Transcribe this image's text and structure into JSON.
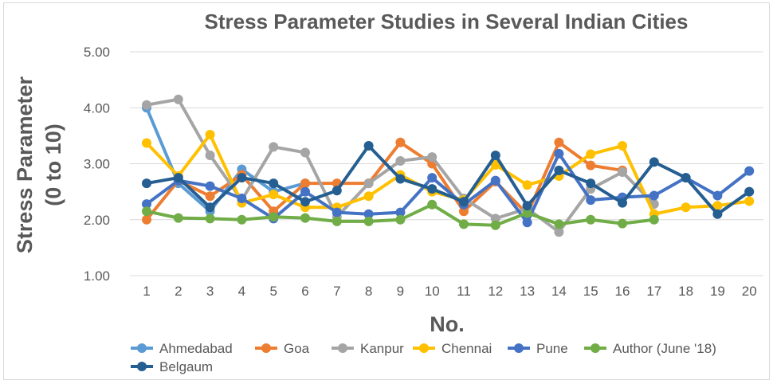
{
  "chart_data": {
    "type": "line",
    "title": "Stress Parameter Studies in Several Indian Cities",
    "xlabel": "No.",
    "ylabel_line1": "Stress Parameter",
    "ylabel_line2": "(0 to 10)",
    "x": [
      1,
      2,
      3,
      4,
      5,
      6,
      7,
      8,
      9,
      10,
      11,
      12,
      13,
      14,
      15,
      16,
      17,
      18,
      19,
      20
    ],
    "ylim": [
      1.0,
      5.0
    ],
    "yticks": [
      "1.00",
      "2.00",
      "3.00",
      "4.00",
      "5.00"
    ],
    "grid": true,
    "legend_position": "bottom",
    "series": [
      {
        "name": "Ahmedabad",
        "color": "#5b9bd5",
        "values": [
          4.0,
          2.65,
          2.15,
          2.9,
          2.5,
          2.65,
          null,
          null,
          null,
          null,
          null,
          null,
          null,
          null,
          null,
          null,
          null,
          null,
          null,
          null
        ]
      },
      {
        "name": "Goa",
        "color": "#ed7d31",
        "values": [
          2.0,
          2.7,
          2.42,
          2.8,
          2.15,
          2.65,
          2.65,
          2.65,
          3.38,
          3.0,
          2.15,
          2.68,
          2.1,
          3.38,
          2.97,
          2.88,
          null,
          null,
          null,
          null
        ]
      },
      {
        "name": "Kanpur",
        "color": "#a5a5a5",
        "values": [
          4.05,
          4.15,
          3.15,
          2.35,
          3.3,
          3.2,
          2.05,
          2.65,
          3.05,
          3.12,
          2.38,
          2.02,
          2.2,
          1.78,
          2.55,
          2.85,
          2.28,
          null,
          null,
          null
        ]
      },
      {
        "name": "Chennai",
        "color": "#ffc000",
        "values": [
          3.37,
          2.78,
          3.52,
          2.3,
          2.45,
          2.22,
          2.22,
          2.42,
          2.8,
          2.5,
          2.35,
          2.98,
          2.62,
          2.78,
          3.17,
          3.32,
          2.1,
          2.22,
          2.25,
          2.33
        ]
      },
      {
        "name": "Pune",
        "color": "#4472c4",
        "values": [
          2.28,
          2.7,
          2.6,
          2.38,
          2.02,
          2.5,
          2.13,
          2.1,
          2.13,
          2.75,
          2.27,
          2.7,
          1.95,
          3.18,
          2.35,
          2.4,
          2.43,
          2.75,
          2.43,
          2.87
        ]
      },
      {
        "name": "Author (June '18)",
        "color": "#70ad47",
        "values": [
          2.15,
          2.03,
          2.02,
          2.0,
          2.05,
          2.03,
          1.97,
          1.97,
          2.0,
          2.27,
          1.92,
          1.9,
          2.12,
          1.92,
          2.0,
          1.93,
          2.0,
          null,
          null,
          null
        ]
      },
      {
        "name": "Belgaum",
        "color": "#255e91",
        "values": [
          2.65,
          2.75,
          2.22,
          2.75,
          2.65,
          2.32,
          2.52,
          3.32,
          2.73,
          2.55,
          2.32,
          3.15,
          2.25,
          2.88,
          2.65,
          2.3,
          3.03,
          2.75,
          2.1,
          2.5
        ]
      }
    ]
  }
}
